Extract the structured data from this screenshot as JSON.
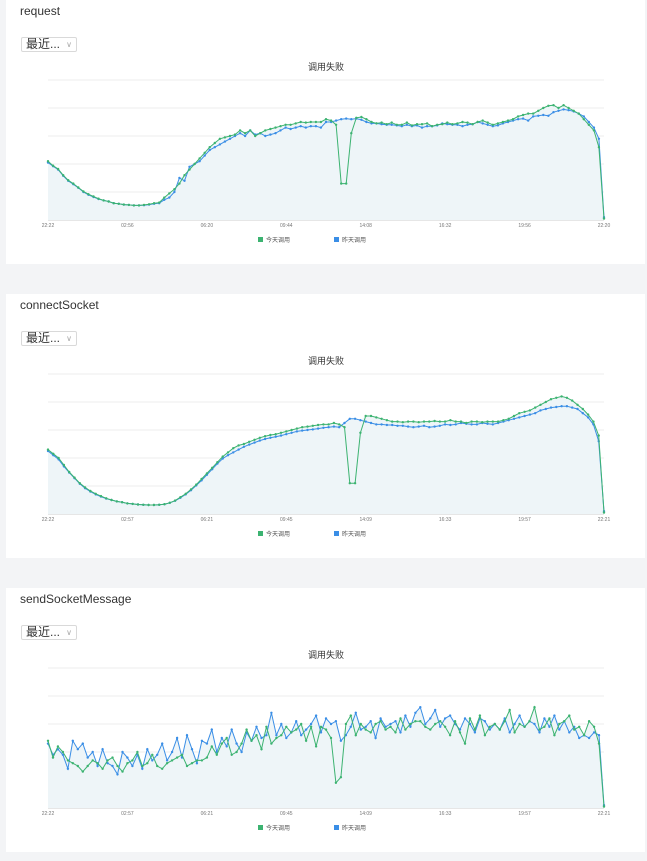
{
  "panels": [
    {
      "title": "request",
      "range_label": "最近...",
      "chevron_icon": "chevron-down-icon",
      "colors": {
        "today": "#3cb371",
        "yesterday": "#3a8ee6",
        "area": "#eef5f8"
      },
      "chart_data": {
        "type": "line",
        "title": "调用失败",
        "x_tick_labels": [
          "22:22",
          "02:56",
          "06:20",
          "09:44",
          "14:08",
          "16:32",
          "19:56",
          "22:20"
        ],
        "y_tick_labels": [
          "",
          "",
          "",
          "",
          "",
          ""
        ],
        "ylim": [
          0,
          5
        ],
        "grid": true,
        "legend": "bottom-center",
        "series": [
          {
            "name": "今天调用",
            "values": [
              2.1,
              1.94,
              1.82,
              1.6,
              1.42,
              1.3,
              1.16,
              1.02,
              0.92,
              0.84,
              0.76,
              0.7,
              0.66,
              0.6,
              0.58,
              0.55,
              0.54,
              0.52,
              0.52,
              0.54,
              0.56,
              0.6,
              0.62,
              0.8,
              0.95,
              1.1,
              1.3,
              1.6,
              1.8,
              2.0,
              2.2,
              2.4,
              2.6,
              2.75,
              2.9,
              2.95,
              3.0,
              3.05,
              3.2,
              3.1,
              3.2,
              3.0,
              3.1,
              3.2,
              3.25,
              3.3,
              3.35,
              3.4,
              3.4,
              3.45,
              3.5,
              3.48,
              3.5,
              3.5,
              3.5,
              3.6,
              3.55,
              3.4,
              1.3,
              1.3,
              3.1,
              3.65,
              3.68,
              3.6,
              3.5,
              3.45,
              3.48,
              3.42,
              3.48,
              3.4,
              3.4,
              3.48,
              3.38,
              3.42,
              3.42,
              3.45,
              3.35,
              3.4,
              3.42,
              3.48,
              3.42,
              3.45,
              3.5,
              3.48,
              3.42,
              3.5,
              3.55,
              3.48,
              3.4,
              3.45,
              3.5,
              3.55,
              3.6,
              3.7,
              3.75,
              3.8,
              3.8,
              3.9,
              4.0,
              4.08,
              4.1,
              4.0,
              4.1,
              4.0,
              3.9,
              3.8,
              3.6,
              3.4,
              3.2,
              2.6,
              0.05
            ]
          },
          {
            "name": "昨天调用",
            "values": [
              2.05,
              1.92,
              1.8,
              1.58,
              1.4,
              1.28,
              1.15,
              1.0,
              0.9,
              0.82,
              0.75,
              0.7,
              0.66,
              0.6,
              0.58,
              0.55,
              0.54,
              0.52,
              0.52,
              0.53,
              0.55,
              0.58,
              0.6,
              0.72,
              0.8,
              1.0,
              1.5,
              1.4,
              1.9,
              2.0,
              2.1,
              2.3,
              2.5,
              2.6,
              2.7,
              2.8,
              2.9,
              3.0,
              3.1,
              3.0,
              3.2,
              3.05,
              3.1,
              3.0,
              3.05,
              3.1,
              3.2,
              3.3,
              3.25,
              3.3,
              3.35,
              3.3,
              3.35,
              3.35,
              3.3,
              3.5,
              3.5,
              3.55,
              3.6,
              3.62,
              3.6,
              3.62,
              3.58,
              3.5,
              3.45,
              3.45,
              3.42,
              3.4,
              3.4,
              3.38,
              3.35,
              3.4,
              3.35,
              3.38,
              3.3,
              3.35,
              3.35,
              3.38,
              3.45,
              3.42,
              3.4,
              3.4,
              3.35,
              3.4,
              3.42,
              3.5,
              3.45,
              3.4,
              3.35,
              3.38,
              3.45,
              3.5,
              3.55,
              3.6,
              3.62,
              3.55,
              3.7,
              3.72,
              3.75,
              3.72,
              3.85,
              3.9,
              3.95,
              3.92,
              3.88,
              3.8,
              3.7,
              3.5,
              3.3,
              2.9,
              0.1
            ]
          }
        ]
      }
    },
    {
      "title": "connectSocket",
      "range_label": "最近...",
      "chevron_icon": "chevron-down-icon",
      "colors": {
        "today": "#3cb371",
        "yesterday": "#3a8ee6",
        "area": "#eef5f8"
      },
      "chart_data": {
        "type": "line",
        "title": "调用失败",
        "x_tick_labels": [
          "22:22",
          "02:57",
          "06:21",
          "09:45",
          "14:09",
          "16:33",
          "19:57",
          "22:21"
        ],
        "y_tick_labels": [
          "",
          "",
          "",
          "",
          "",
          ""
        ],
        "ylim": [
          0,
          5
        ],
        "grid": true,
        "legend": "bottom-center",
        "series": [
          {
            "name": "今天调用",
            "values": [
              2.3,
              2.15,
              2.0,
              1.75,
              1.5,
              1.3,
              1.1,
              0.95,
              0.82,
              0.72,
              0.64,
              0.56,
              0.5,
              0.45,
              0.42,
              0.38,
              0.36,
              0.34,
              0.33,
              0.32,
              0.32,
              0.33,
              0.35,
              0.4,
              0.48,
              0.6,
              0.72,
              0.88,
              1.05,
              1.25,
              1.45,
              1.65,
              1.85,
              2.05,
              2.2,
              2.35,
              2.45,
              2.5,
              2.58,
              2.65,
              2.72,
              2.78,
              2.82,
              2.85,
              2.9,
              2.95,
              3.0,
              3.05,
              3.1,
              3.12,
              3.15,
              3.18,
              3.2,
              3.2,
              3.25,
              3.2,
              3.1,
              1.1,
              1.1,
              2.9,
              3.5,
              3.5,
              3.45,
              3.4,
              3.35,
              3.3,
              3.3,
              3.28,
              3.3,
              3.3,
              3.28,
              3.3,
              3.3,
              3.32,
              3.3,
              3.3,
              3.35,
              3.3,
              3.3,
              3.25,
              3.3,
              3.3,
              3.28,
              3.3,
              3.3,
              3.3,
              3.35,
              3.4,
              3.5,
              3.6,
              3.65,
              3.7,
              3.8,
              3.9,
              4.0,
              4.1,
              4.15,
              4.2,
              4.15,
              4.05,
              3.9,
              3.75,
              3.55,
              3.3,
              2.8,
              0.05
            ]
          },
          {
            "name": "昨天调用",
            "values": [
              2.25,
              2.1,
              1.95,
              1.7,
              1.48,
              1.28,
              1.08,
              0.92,
              0.8,
              0.7,
              0.62,
              0.55,
              0.5,
              0.45,
              0.42,
              0.38,
              0.36,
              0.34,
              0.33,
              0.32,
              0.32,
              0.33,
              0.35,
              0.4,
              0.47,
              0.58,
              0.7,
              0.85,
              1.02,
              1.2,
              1.4,
              1.6,
              1.8,
              1.98,
              2.1,
              2.2,
              2.3,
              2.4,
              2.48,
              2.55,
              2.62,
              2.68,
              2.72,
              2.76,
              2.8,
              2.85,
              2.9,
              2.95,
              2.98,
              3.0,
              3.02,
              3.05,
              3.08,
              3.1,
              3.12,
              3.1,
              3.25,
              3.4,
              3.4,
              3.35,
              3.3,
              3.25,
              3.2,
              3.2,
              3.18,
              3.18,
              3.15,
              3.15,
              3.12,
              3.1,
              3.12,
              3.15,
              3.1,
              3.12,
              3.15,
              3.2,
              3.18,
              3.2,
              3.25,
              3.22,
              3.2,
              3.2,
              3.25,
              3.22,
              3.2,
              3.25,
              3.3,
              3.35,
              3.4,
              3.45,
              3.5,
              3.55,
              3.6,
              3.7,
              3.75,
              3.8,
              3.82,
              3.85,
              3.85,
              3.8,
              3.75,
              3.6,
              3.45,
              3.2,
              2.6,
              0.1
            ]
          }
        ]
      }
    },
    {
      "title": "sendSocketMessage",
      "range_label": "最近...",
      "chevron_icon": "chevron-down-icon",
      "colors": {
        "today": "#3cb371",
        "yesterday": "#3a8ee6",
        "area": "#eef5f8"
      },
      "chart_data": {
        "type": "line",
        "title": "调用失败",
        "x_tick_labels": [
          "22:22",
          "02:57",
          "06:21",
          "09:45",
          "14:09",
          "16:33",
          "19:57",
          "22:21"
        ],
        "y_tick_labels": [
          "",
          "",
          "",
          "",
          "",
          ""
        ],
        "ylim": [
          0,
          5
        ],
        "grid": true,
        "legend": "bottom-center",
        "series": [
          {
            "name": "今天调用",
            "values": [
              2.4,
              1.8,
              2.2,
              2.0,
              1.7,
              1.6,
              1.5,
              1.3,
              1.5,
              1.7,
              1.6,
              1.4,
              1.7,
              1.8,
              1.5,
              1.3,
              1.6,
              1.7,
              2.0,
              1.5,
              1.6,
              1.9,
              1.5,
              1.4,
              1.6,
              1.7,
              1.8,
              1.9,
              1.5,
              1.6,
              1.7,
              1.7,
              1.8,
              2.2,
              1.9,
              2.3,
              2.5,
              1.9,
              2.0,
              2.3,
              2.8,
              2.4,
              2.6,
              2.1,
              2.9,
              2.3,
              2.5,
              2.6,
              2.9,
              2.7,
              2.8,
              3.0,
              2.4,
              2.9,
              2.2,
              2.9,
              2.8,
              2.5,
              0.9,
              1.1,
              3.0,
              3.3,
              2.6,
              3.0,
              2.8,
              2.7,
              3.0,
              3.1,
              2.8,
              2.9,
              2.7,
              3.2,
              2.8,
              3.0,
              3.1,
              3.1,
              2.9,
              2.8,
              3.0,
              3.1,
              2.9,
              2.6,
              3.1,
              2.7,
              2.3,
              3.2,
              2.8,
              3.3,
              2.6,
              2.9,
              3.0,
              2.8,
              3.1,
              3.5,
              2.7,
              3.0,
              2.9,
              3.1,
              3.6,
              2.8,
              2.9,
              3.2,
              2.6,
              3.0,
              3.1,
              3.3,
              2.8,
              2.9,
              2.6,
              3.1,
              2.9,
              2.3,
              0.05
            ]
          },
          {
            "name": "昨天调用",
            "values": [
              2.3,
              1.9,
              2.1,
              1.9,
              1.4,
              2.4,
              2.1,
              2.3,
              1.8,
              2.0,
              1.5,
              2.1,
              1.6,
              1.5,
              1.2,
              2.0,
              1.8,
              1.5,
              1.9,
              1.4,
              2.1,
              1.7,
              1.9,
              2.3,
              1.7,
              2.0,
              2.5,
              1.8,
              2.6,
              2.1,
              1.6,
              2.4,
              2.3,
              2.8,
              2.0,
              2.5,
              2.2,
              2.8,
              2.3,
              2.0,
              2.7,
              2.4,
              2.9,
              2.5,
              2.6,
              3.4,
              2.6,
              3.0,
              2.5,
              2.7,
              3.1,
              2.6,
              2.8,
              3.0,
              3.3,
              2.7,
              3.2,
              3.0,
              3.1,
              2.4,
              2.6,
              2.9,
              3.4,
              2.8,
              2.9,
              3.1,
              2.5,
              3.2,
              2.9,
              3.0,
              3.1,
              2.7,
              3.3,
              2.9,
              3.4,
              3.6,
              3.0,
              3.2,
              3.5,
              2.9,
              3.2,
              3.3,
              3.0,
              2.8,
              3.2,
              3.0,
              2.7,
              3.2,
              3.1,
              2.8,
              3.0,
              2.8,
              3.2,
              2.7,
              3.0,
              3.3,
              2.9,
              3.1,
              3.0,
              2.7,
              3.2,
              2.9,
              3.3,
              2.8,
              3.1,
              2.7,
              2.9,
              2.5,
              2.6,
              2.5,
              2.7,
              2.6,
              0.1
            ]
          }
        ]
      }
    }
  ]
}
